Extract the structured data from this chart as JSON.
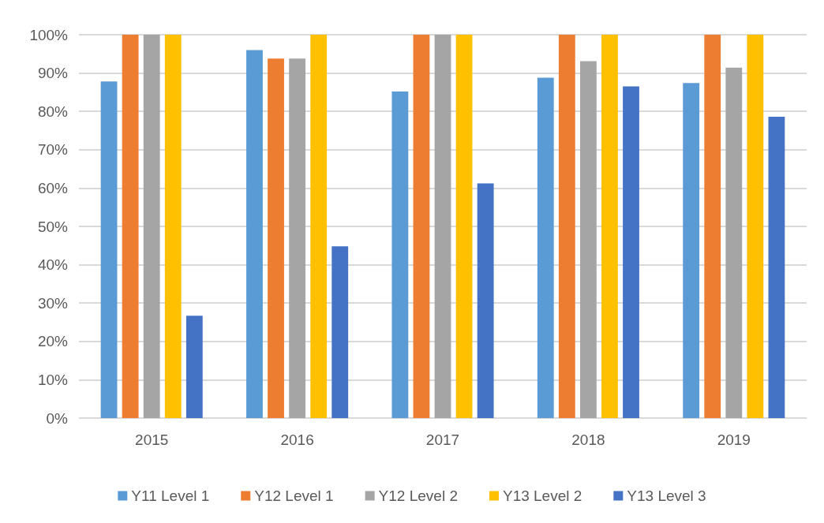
{
  "chart_data": {
    "type": "bar",
    "categories": [
      "2015",
      "2016",
      "2017",
      "2018",
      "2019"
    ],
    "series": [
      {
        "name": "Y11 Level 1",
        "color": "#5b9bd5",
        "values": [
          87.8,
          96,
          85.2,
          88.8,
          87.4
        ]
      },
      {
        "name": "Y12 Level 1",
        "color": "#ed7d31",
        "values": [
          100,
          93.8,
          100,
          100,
          100
        ]
      },
      {
        "name": "Y12 Level 2",
        "color": "#a5a5a5",
        "values": [
          100,
          93.8,
          100,
          93.1,
          91.4
        ]
      },
      {
        "name": "Y13 Level 2",
        "color": "#ffc000",
        "values": [
          100,
          100,
          100,
          100,
          100
        ]
      },
      {
        "name": "Y13 Level 3",
        "color": "#4472c4",
        "values": [
          26.7,
          44.8,
          61.2,
          86.5,
          78.6
        ]
      }
    ],
    "ylim": [
      0,
      100
    ],
    "yticks": [
      {
        "value": 0,
        "label": "0%"
      },
      {
        "value": 10,
        "label": "10%"
      },
      {
        "value": 20,
        "label": "20%"
      },
      {
        "value": 30,
        "label": "30%"
      },
      {
        "value": 40,
        "label": "40%"
      },
      {
        "value": 50,
        "label": "50%"
      },
      {
        "value": 60,
        "label": "60%"
      },
      {
        "value": 70,
        "label": "70%"
      },
      {
        "value": 80,
        "label": "80%"
      },
      {
        "value": 90,
        "label": "90%"
      },
      {
        "value": 100,
        "label": "100%"
      }
    ],
    "grid": "y",
    "legend": "bottom"
  }
}
